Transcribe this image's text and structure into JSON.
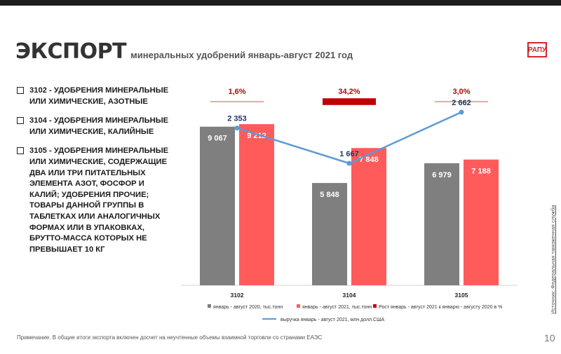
{
  "header": {
    "title": "ЭКСПОРТ",
    "subtitle": "минеральных удобрений январь-август 2021 год",
    "logo": "РАПУ"
  },
  "items": [
    {
      "text": "3102 - УДОБРЕНИЯ МИНЕРАЛЬНЫЕ ИЛИ ХИМИЧЕСКИЕ, АЗОТНЫЕ"
    },
    {
      "text": "3104 - УДОБРЕНИЯ МИНЕРАЛЬНЫЕ ИЛИ ХИМИЧЕСКИЕ, КАЛИЙНЫЕ"
    },
    {
      "text": "3105 - УДОБРЕНИЯ МИНЕРАЛЬНЫЕ ИЛИ ХИМИЧЕСКИЕ, СОДЕРЖАЩИЕ ДВА ИЛИ ТРИ ПИТАТЕЛЬНЫХ ЭЛЕМЕНТА АЗОТ, ФОСФОР И КАЛИЙ; УДОБРЕНИЯ ПРОЧИЕ; ТОВАРЫ ДАННОЙ ГРУППЫ В ТАБЛЕТКАХ ИЛИ АНАЛОГИЧНЫХ ФОРМАХ ИЛИ В УПАКОВКАХ, БРУТТО-МАССА КОТОРЫХ НЕ ПРЕВЫШАЕТ 10 КГ"
    }
  ],
  "chart_data": {
    "type": "bar",
    "categories": [
      "3102",
      "3104",
      "3105"
    ],
    "series": [
      {
        "name": "январь - август 2020, тыс.тонн",
        "color": "#7f7f7f",
        "values": [
          9067,
          5848,
          6979
        ],
        "labels": [
          "9 067",
          "5 848",
          "6 979"
        ]
      },
      {
        "name": "январь - август 2021, тыс.тонн",
        "color": "#ff5b5b",
        "values": [
          9212,
          7848,
          7188
        ],
        "labels": [
          "9 212",
          "7 848",
          "7 188"
        ]
      }
    ],
    "growth": {
      "name": "Рост январь - август 2021 к январю - августу 2020 в %",
      "color": "#c00000",
      "values": [
        1.6,
        34.2,
        3.0
      ],
      "labels": [
        "1,6%",
        "34,2%",
        "3,0%"
      ]
    },
    "line": {
      "name": "выручка январь - август 2021, млн долл.США",
      "color": "#5b9bd5",
      "values": [
        2353,
        1667,
        2662
      ],
      "labels": [
        "2 353",
        "1 667",
        "2 662"
      ]
    }
  },
  "footer": {
    "note": "Примечание. В общие итоги экспорта включен досчет на неучтенные объемы взаимной торговли со странами ЕАЭС",
    "page": "10",
    "source": "Источник: Федеральная таможенная служба"
  }
}
